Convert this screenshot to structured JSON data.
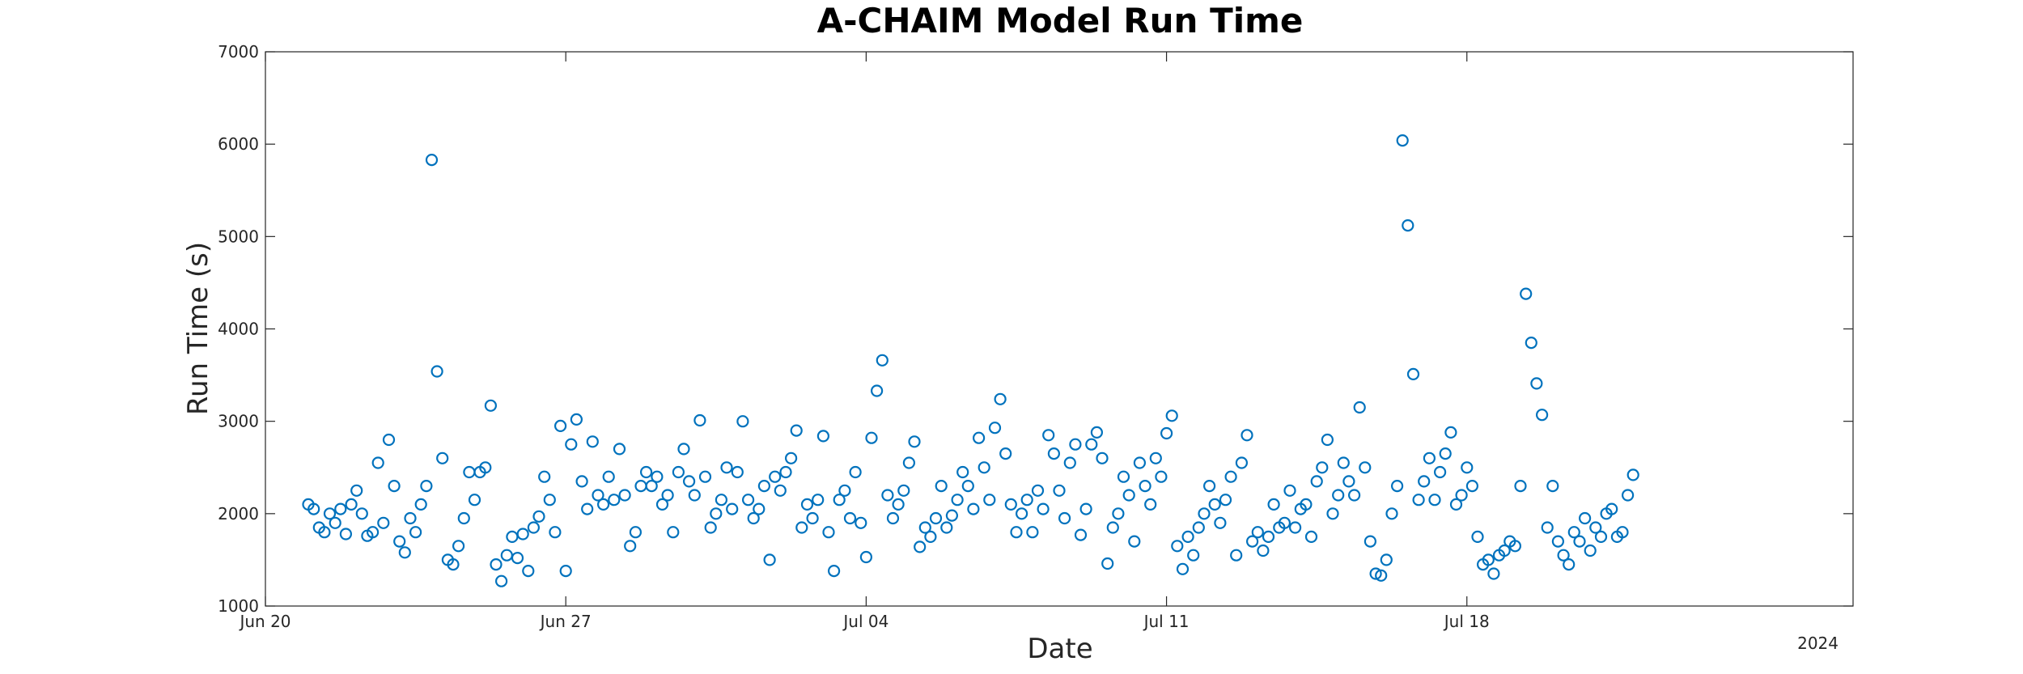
{
  "chart_data": {
    "type": "scatter",
    "title": "A-CHAIM Model Run Time",
    "xlabel": "Date",
    "ylabel": "Run Time (s)",
    "year_label": "2024",
    "xlim": [
      "2024-06-20",
      "2024-07-27"
    ],
    "ylim": [
      1000,
      7000
    ],
    "x_ticks": [
      {
        "date": "2024-06-20",
        "label": "Jun 20"
      },
      {
        "date": "2024-06-27",
        "label": "Jun 27"
      },
      {
        "date": "2024-07-04",
        "label": "Jul 04"
      },
      {
        "date": "2024-07-11",
        "label": "Jul 11"
      },
      {
        "date": "2024-07-18",
        "label": "Jul 18"
      }
    ],
    "y_ticks": [
      1000,
      2000,
      3000,
      4000,
      5000,
      6000,
      7000
    ],
    "grid": false,
    "marker": "open-circle",
    "marker_color": "#0072BD",
    "series": [
      {
        "points": [
          [
            "2024-06-21 00:00",
            2100
          ],
          [
            "2024-06-21 03:00",
            2050
          ],
          [
            "2024-06-21 06:00",
            1850
          ],
          [
            "2024-06-21 09:00",
            1800
          ],
          [
            "2024-06-21 12:00",
            2000
          ],
          [
            "2024-06-21 15:00",
            1900
          ],
          [
            "2024-06-21 18:00",
            2050
          ],
          [
            "2024-06-21 21:00",
            1780
          ],
          [
            "2024-06-22 00:00",
            2100
          ],
          [
            "2024-06-22 03:00",
            2250
          ],
          [
            "2024-06-22 06:00",
            2000
          ],
          [
            "2024-06-22 09:00",
            1760
          ],
          [
            "2024-06-22 12:00",
            1800
          ],
          [
            "2024-06-22 15:00",
            2550
          ],
          [
            "2024-06-22 18:00",
            1900
          ],
          [
            "2024-06-22 21:00",
            2800
          ],
          [
            "2024-06-23 00:00",
            2300
          ],
          [
            "2024-06-23 03:00",
            1700
          ],
          [
            "2024-06-23 06:00",
            1580
          ],
          [
            "2024-06-23 09:00",
            1950
          ],
          [
            "2024-06-23 12:00",
            1800
          ],
          [
            "2024-06-23 15:00",
            2100
          ],
          [
            "2024-06-23 18:00",
            2300
          ],
          [
            "2024-06-23 21:00",
            5830
          ],
          [
            "2024-06-24 00:00",
            3540
          ],
          [
            "2024-06-24 03:00",
            2600
          ],
          [
            "2024-06-24 06:00",
            1500
          ],
          [
            "2024-06-24 09:00",
            1450
          ],
          [
            "2024-06-24 12:00",
            1650
          ],
          [
            "2024-06-24 15:00",
            1950
          ],
          [
            "2024-06-24 18:00",
            2450
          ],
          [
            "2024-06-24 21:00",
            2150
          ],
          [
            "2024-06-25 00:00",
            2450
          ],
          [
            "2024-06-25 03:00",
            2500
          ],
          [
            "2024-06-25 06:00",
            3170
          ],
          [
            "2024-06-25 09:00",
            1450
          ],
          [
            "2024-06-25 12:00",
            1270
          ],
          [
            "2024-06-25 15:00",
            1550
          ],
          [
            "2024-06-25 18:00",
            1750
          ],
          [
            "2024-06-25 21:00",
            1520
          ],
          [
            "2024-06-26 00:00",
            1780
          ],
          [
            "2024-06-26 03:00",
            1380
          ],
          [
            "2024-06-26 06:00",
            1850
          ],
          [
            "2024-06-26 09:00",
            1970
          ],
          [
            "2024-06-26 12:00",
            2400
          ],
          [
            "2024-06-26 15:00",
            2150
          ],
          [
            "2024-06-26 18:00",
            1800
          ],
          [
            "2024-06-26 21:00",
            2950
          ],
          [
            "2024-06-27 00:00",
            1380
          ],
          [
            "2024-06-27 03:00",
            2750
          ],
          [
            "2024-06-27 06:00",
            3020
          ],
          [
            "2024-06-27 09:00",
            2350
          ],
          [
            "2024-06-27 12:00",
            2050
          ],
          [
            "2024-06-27 15:00",
            2780
          ],
          [
            "2024-06-27 18:00",
            2200
          ],
          [
            "2024-06-27 21:00",
            2100
          ],
          [
            "2024-06-28 00:00",
            2400
          ],
          [
            "2024-06-28 03:00",
            2150
          ],
          [
            "2024-06-28 06:00",
            2700
          ],
          [
            "2024-06-28 09:00",
            2200
          ],
          [
            "2024-06-28 12:00",
            1650
          ],
          [
            "2024-06-28 15:00",
            1800
          ],
          [
            "2024-06-28 18:00",
            2300
          ],
          [
            "2024-06-28 21:00",
            2450
          ],
          [
            "2024-06-29 00:00",
            2300
          ],
          [
            "2024-06-29 03:00",
            2400
          ],
          [
            "2024-06-29 06:00",
            2100
          ],
          [
            "2024-06-29 09:00",
            2200
          ],
          [
            "2024-06-29 12:00",
            1800
          ],
          [
            "2024-06-29 15:00",
            2450
          ],
          [
            "2024-06-29 18:00",
            2700
          ],
          [
            "2024-06-29 21:00",
            2350
          ],
          [
            "2024-06-30 00:00",
            2200
          ],
          [
            "2024-06-30 03:00",
            3010
          ],
          [
            "2024-06-30 06:00",
            2400
          ],
          [
            "2024-06-30 09:00",
            1850
          ],
          [
            "2024-06-30 12:00",
            2000
          ],
          [
            "2024-06-30 15:00",
            2150
          ],
          [
            "2024-06-30 18:00",
            2500
          ],
          [
            "2024-06-30 21:00",
            2050
          ],
          [
            "2024-07-01 00:00",
            2450
          ],
          [
            "2024-07-01 03:00",
            3000
          ],
          [
            "2024-07-01 06:00",
            2150
          ],
          [
            "2024-07-01 09:00",
            1950
          ],
          [
            "2024-07-01 12:00",
            2050
          ],
          [
            "2024-07-01 15:00",
            2300
          ],
          [
            "2024-07-01 18:00",
            1500
          ],
          [
            "2024-07-01 21:00",
            2400
          ],
          [
            "2024-07-02 00:00",
            2250
          ],
          [
            "2024-07-02 03:00",
            2450
          ],
          [
            "2024-07-02 06:00",
            2600
          ],
          [
            "2024-07-02 09:00",
            2900
          ],
          [
            "2024-07-02 12:00",
            1850
          ],
          [
            "2024-07-02 15:00",
            2100
          ],
          [
            "2024-07-02 18:00",
            1950
          ],
          [
            "2024-07-02 21:00",
            2150
          ],
          [
            "2024-07-03 00:00",
            2840
          ],
          [
            "2024-07-03 03:00",
            1800
          ],
          [
            "2024-07-03 06:00",
            1380
          ],
          [
            "2024-07-03 09:00",
            2150
          ],
          [
            "2024-07-03 12:00",
            2250
          ],
          [
            "2024-07-03 15:00",
            1950
          ],
          [
            "2024-07-03 18:00",
            2450
          ],
          [
            "2024-07-03 21:00",
            1900
          ],
          [
            "2024-07-04 00:00",
            1530
          ],
          [
            "2024-07-04 03:00",
            2820
          ],
          [
            "2024-07-04 06:00",
            3330
          ],
          [
            "2024-07-04 09:00",
            3660
          ],
          [
            "2024-07-04 12:00",
            2200
          ],
          [
            "2024-07-04 15:00",
            1950
          ],
          [
            "2024-07-04 18:00",
            2100
          ],
          [
            "2024-07-04 21:00",
            2250
          ],
          [
            "2024-07-05 00:00",
            2550
          ],
          [
            "2024-07-05 03:00",
            2780
          ],
          [
            "2024-07-05 06:00",
            1640
          ],
          [
            "2024-07-05 09:00",
            1850
          ],
          [
            "2024-07-05 12:00",
            1750
          ],
          [
            "2024-07-05 15:00",
            1950
          ],
          [
            "2024-07-05 18:00",
            2300
          ],
          [
            "2024-07-05 21:00",
            1850
          ],
          [
            "2024-07-06 00:00",
            1980
          ],
          [
            "2024-07-06 03:00",
            2150
          ],
          [
            "2024-07-06 06:00",
            2450
          ],
          [
            "2024-07-06 09:00",
            2300
          ],
          [
            "2024-07-06 12:00",
            2050
          ],
          [
            "2024-07-06 15:00",
            2820
          ],
          [
            "2024-07-06 18:00",
            2500
          ],
          [
            "2024-07-06 21:00",
            2150
          ],
          [
            "2024-07-07 00:00",
            2930
          ],
          [
            "2024-07-07 03:00",
            3240
          ],
          [
            "2024-07-07 06:00",
            2650
          ],
          [
            "2024-07-07 09:00",
            2100
          ],
          [
            "2024-07-07 12:00",
            1800
          ],
          [
            "2024-07-07 15:00",
            2000
          ],
          [
            "2024-07-07 18:00",
            2150
          ],
          [
            "2024-07-07 21:00",
            1800
          ],
          [
            "2024-07-08 00:00",
            2250
          ],
          [
            "2024-07-08 03:00",
            2050
          ],
          [
            "2024-07-08 06:00",
            2850
          ],
          [
            "2024-07-08 09:00",
            2650
          ],
          [
            "2024-07-08 12:00",
            2250
          ],
          [
            "2024-07-08 15:00",
            1950
          ],
          [
            "2024-07-08 18:00",
            2550
          ],
          [
            "2024-07-08 21:00",
            2750
          ],
          [
            "2024-07-09 00:00",
            1770
          ],
          [
            "2024-07-09 03:00",
            2050
          ],
          [
            "2024-07-09 06:00",
            2750
          ],
          [
            "2024-07-09 09:00",
            2880
          ],
          [
            "2024-07-09 12:00",
            2600
          ],
          [
            "2024-07-09 15:00",
            1460
          ],
          [
            "2024-07-09 18:00",
            1850
          ],
          [
            "2024-07-09 21:00",
            2000
          ],
          [
            "2024-07-10 00:00",
            2400
          ],
          [
            "2024-07-10 03:00",
            2200
          ],
          [
            "2024-07-10 06:00",
            1700
          ],
          [
            "2024-07-10 09:00",
            2550
          ],
          [
            "2024-07-10 12:00",
            2300
          ],
          [
            "2024-07-10 15:00",
            2100
          ],
          [
            "2024-07-10 18:00",
            2600
          ],
          [
            "2024-07-10 21:00",
            2400
          ],
          [
            "2024-07-11 00:00",
            2870
          ],
          [
            "2024-07-11 03:00",
            3060
          ],
          [
            "2024-07-11 06:00",
            1650
          ],
          [
            "2024-07-11 09:00",
            1400
          ],
          [
            "2024-07-11 12:00",
            1750
          ],
          [
            "2024-07-11 15:00",
            1550
          ],
          [
            "2024-07-11 18:00",
            1850
          ],
          [
            "2024-07-11 21:00",
            2000
          ],
          [
            "2024-07-12 00:00",
            2300
          ],
          [
            "2024-07-12 03:00",
            2100
          ],
          [
            "2024-07-12 06:00",
            1900
          ],
          [
            "2024-07-12 09:00",
            2150
          ],
          [
            "2024-07-12 12:00",
            2400
          ],
          [
            "2024-07-12 15:00",
            1550
          ],
          [
            "2024-07-12 18:00",
            2550
          ],
          [
            "2024-07-12 21:00",
            2850
          ],
          [
            "2024-07-13 00:00",
            1700
          ],
          [
            "2024-07-13 03:00",
            1800
          ],
          [
            "2024-07-13 06:00",
            1600
          ],
          [
            "2024-07-13 09:00",
            1750
          ],
          [
            "2024-07-13 12:00",
            2100
          ],
          [
            "2024-07-13 15:00",
            1850
          ],
          [
            "2024-07-13 18:00",
            1900
          ],
          [
            "2024-07-13 21:00",
            2250
          ],
          [
            "2024-07-14 00:00",
            1850
          ],
          [
            "2024-07-14 03:00",
            2050
          ],
          [
            "2024-07-14 06:00",
            2100
          ],
          [
            "2024-07-14 09:00",
            1750
          ],
          [
            "2024-07-14 12:00",
            2350
          ],
          [
            "2024-07-14 15:00",
            2500
          ],
          [
            "2024-07-14 18:00",
            2800
          ],
          [
            "2024-07-14 21:00",
            2000
          ],
          [
            "2024-07-15 00:00",
            2200
          ],
          [
            "2024-07-15 03:00",
            2550
          ],
          [
            "2024-07-15 06:00",
            2350
          ],
          [
            "2024-07-15 09:00",
            2200
          ],
          [
            "2024-07-15 12:00",
            3150
          ],
          [
            "2024-07-15 15:00",
            2500
          ],
          [
            "2024-07-15 18:00",
            1700
          ],
          [
            "2024-07-15 21:00",
            1350
          ],
          [
            "2024-07-16 00:00",
            1330
          ],
          [
            "2024-07-16 03:00",
            1500
          ],
          [
            "2024-07-16 06:00",
            2000
          ],
          [
            "2024-07-16 09:00",
            2300
          ],
          [
            "2024-07-16 12:00",
            6040
          ],
          [
            "2024-07-16 15:00",
            5120
          ],
          [
            "2024-07-16 18:00",
            3510
          ],
          [
            "2024-07-16 21:00",
            2150
          ],
          [
            "2024-07-17 00:00",
            2350
          ],
          [
            "2024-07-17 03:00",
            2600
          ],
          [
            "2024-07-17 06:00",
            2150
          ],
          [
            "2024-07-17 09:00",
            2450
          ],
          [
            "2024-07-17 12:00",
            2650
          ],
          [
            "2024-07-17 15:00",
            2880
          ],
          [
            "2024-07-17 18:00",
            2100
          ],
          [
            "2024-07-17 21:00",
            2200
          ],
          [
            "2024-07-18 00:00",
            2500
          ],
          [
            "2024-07-18 03:00",
            2300
          ],
          [
            "2024-07-18 06:00",
            1750
          ],
          [
            "2024-07-18 09:00",
            1450
          ],
          [
            "2024-07-18 12:00",
            1500
          ],
          [
            "2024-07-18 15:00",
            1350
          ],
          [
            "2024-07-18 18:00",
            1550
          ],
          [
            "2024-07-18 21:00",
            1600
          ],
          [
            "2024-07-19 00:00",
            1700
          ],
          [
            "2024-07-19 03:00",
            1650
          ],
          [
            "2024-07-19 06:00",
            2300
          ],
          [
            "2024-07-19 09:00",
            4380
          ],
          [
            "2024-07-19 12:00",
            3850
          ],
          [
            "2024-07-19 15:00",
            3410
          ],
          [
            "2024-07-19 18:00",
            3070
          ],
          [
            "2024-07-19 21:00",
            1850
          ],
          [
            "2024-07-20 00:00",
            2300
          ],
          [
            "2024-07-20 03:00",
            1700
          ],
          [
            "2024-07-20 06:00",
            1550
          ],
          [
            "2024-07-20 09:00",
            1450
          ],
          [
            "2024-07-20 12:00",
            1800
          ],
          [
            "2024-07-20 15:00",
            1700
          ],
          [
            "2024-07-20 18:00",
            1950
          ],
          [
            "2024-07-20 21:00",
            1600
          ],
          [
            "2024-07-21 00:00",
            1850
          ],
          [
            "2024-07-21 03:00",
            1750
          ],
          [
            "2024-07-21 06:00",
            2000
          ],
          [
            "2024-07-21 09:00",
            2050
          ],
          [
            "2024-07-21 12:00",
            1750
          ],
          [
            "2024-07-21 15:00",
            1800
          ],
          [
            "2024-07-21 18:00",
            2200
          ],
          [
            "2024-07-21 21:00",
            2420
          ]
        ]
      }
    ]
  }
}
